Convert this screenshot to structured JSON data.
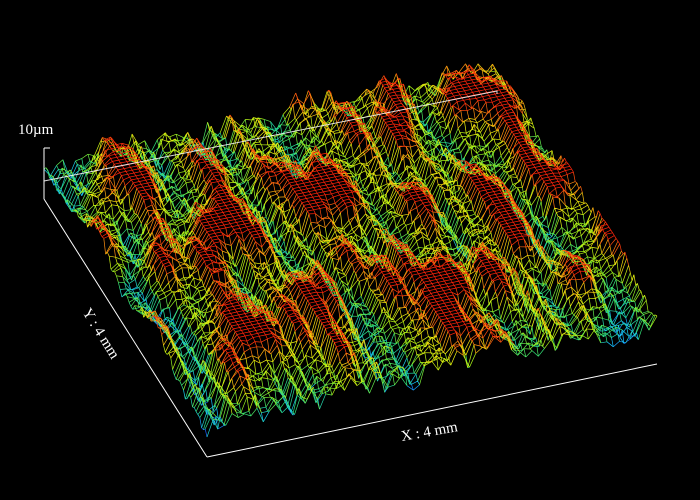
{
  "chart_data": {
    "type": "surface",
    "title": "",
    "z_scale_label": "10µm",
    "xlabel": "X : 4 mm",
    "ylabel": "Y : 4 mm",
    "x_range_mm": [
      0,
      4
    ],
    "y_range_mm": [
      0,
      4
    ],
    "z_range_um": [
      0,
      10
    ],
    "grid_rows": 90,
    "grid_cols": 72,
    "colormap": [
      "#1a33ff",
      "#16c8ff",
      "#2ee07a",
      "#9ef018",
      "#f2f20e",
      "#ff7a10",
      "#ff1a0a"
    ],
    "background": "#000000",
    "axis_color": "#ffffff",
    "texture": "fine parallel ridges running roughly along Y with sparse high (red) peaks"
  }
}
